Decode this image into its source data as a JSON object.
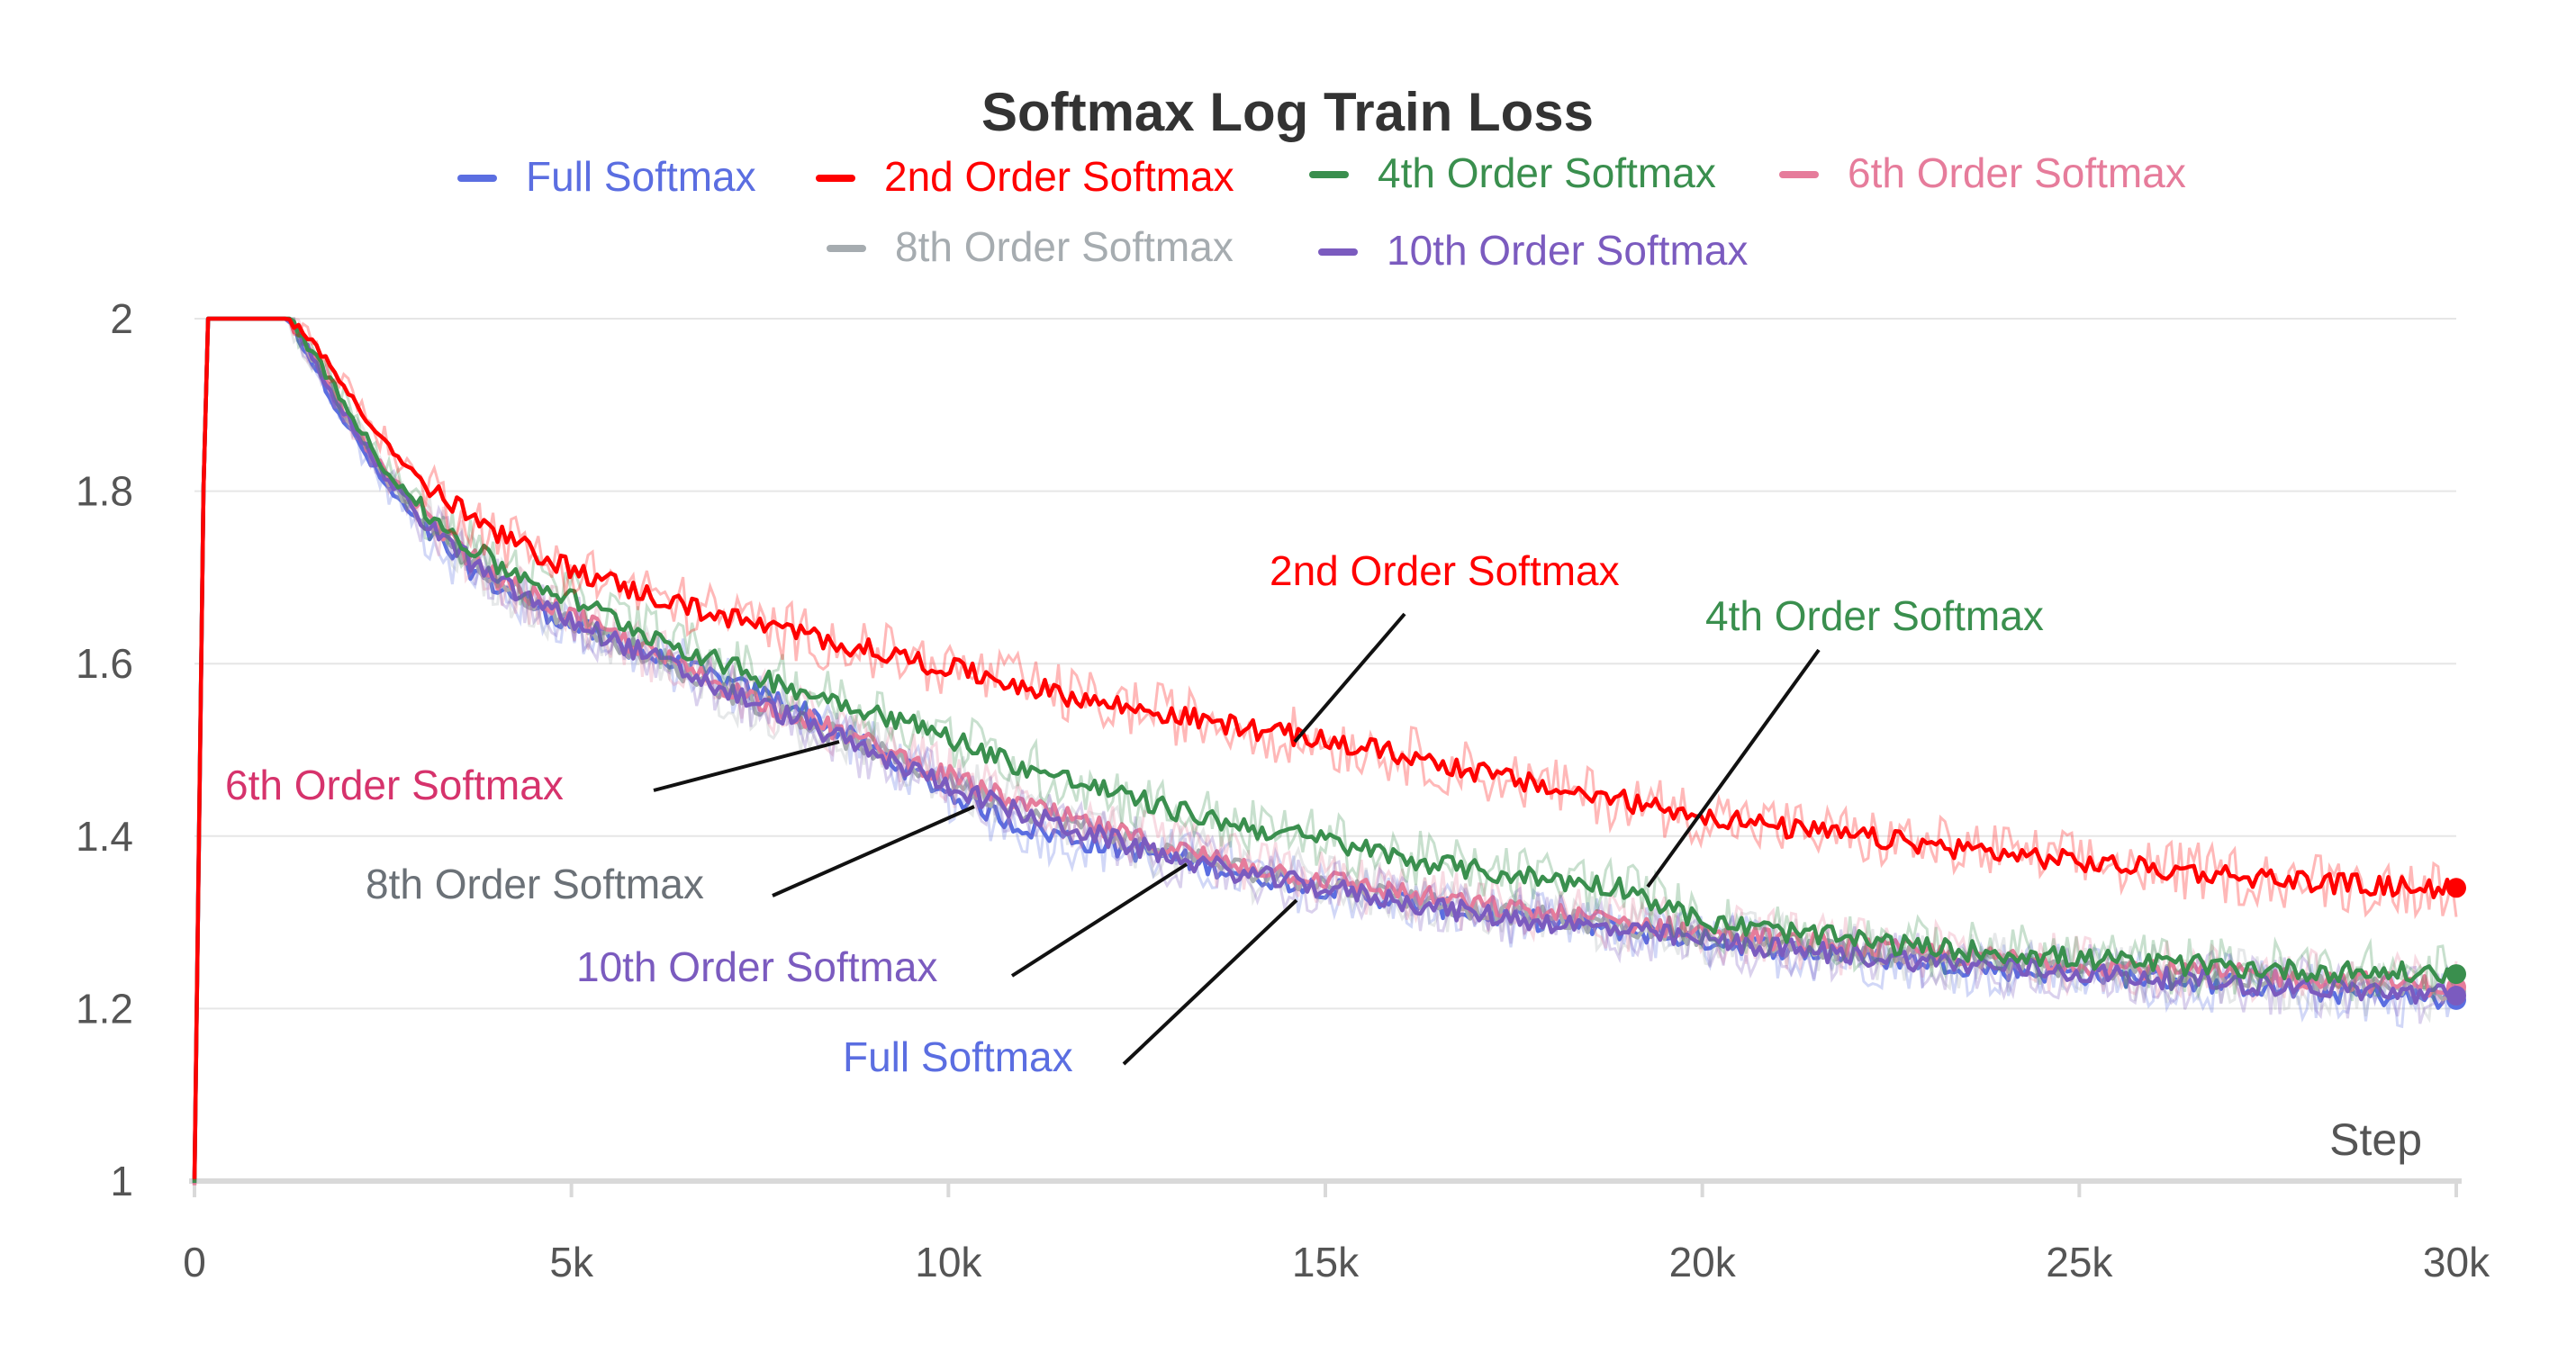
{
  "chart_data": {
    "type": "line",
    "title": "Softmax Log Train Loss",
    "xlabel": "Step",
    "ylabel": "",
    "xlim": [
      0,
      30000
    ],
    "ylim": [
      1,
      2
    ],
    "x_ticks": [
      0,
      5000,
      10000,
      15000,
      20000,
      25000,
      30000
    ],
    "x_tick_labels": [
      "0",
      "5k",
      "10k",
      "15k",
      "20k",
      "25k",
      "30k"
    ],
    "y_ticks": [
      1,
      1.2,
      1.4,
      1.6,
      1.8,
      2
    ],
    "y_tick_labels": [
      "1",
      "1.2",
      "1.4",
      "1.6",
      "1.8",
      "2"
    ],
    "grid": true,
    "legend_position": "top",
    "x": [
      0,
      150,
      300,
      1000,
      1250,
      1500,
      2000,
      2500,
      3000,
      3500,
      4000,
      5000,
      6000,
      7000,
      8000,
      9000,
      10000,
      11000,
      12000,
      13000,
      14000,
      15000,
      16000,
      17000,
      18000,
      19000,
      20000,
      21000,
      22000,
      23000,
      24000,
      25000,
      26000,
      27000,
      28000,
      29000,
      30000
    ],
    "series": [
      {
        "name": "Full Softmax",
        "color": "#5b6ee1",
        "values": [
          1.0,
          2.0,
          2.0,
          2.0,
          2.0,
          1.96,
          1.88,
          1.81,
          1.76,
          1.72,
          1.69,
          1.645,
          1.61,
          1.58,
          1.55,
          1.5,
          1.45,
          1.41,
          1.39,
          1.375,
          1.355,
          1.34,
          1.325,
          1.31,
          1.3,
          1.29,
          1.28,
          1.27,
          1.26,
          1.255,
          1.245,
          1.24,
          1.235,
          1.228,
          1.22,
          1.215,
          1.21
        ]
      },
      {
        "name": "2nd Order Softmax",
        "color": "#ff0000",
        "values": [
          1.0,
          2.0,
          2.0,
          2.0,
          2.0,
          1.98,
          1.92,
          1.86,
          1.81,
          1.78,
          1.75,
          1.71,
          1.68,
          1.655,
          1.635,
          1.615,
          1.595,
          1.575,
          1.555,
          1.54,
          1.525,
          1.51,
          1.495,
          1.475,
          1.455,
          1.44,
          1.425,
          1.41,
          1.4,
          1.39,
          1.38,
          1.37,
          1.362,
          1.355,
          1.348,
          1.342,
          1.34
        ]
      },
      {
        "name": "4th Order Softmax",
        "color": "#3a8f4e",
        "values": [
          1.0,
          2.0,
          2.0,
          2.0,
          2.0,
          1.97,
          1.9,
          1.83,
          1.78,
          1.745,
          1.715,
          1.675,
          1.635,
          1.6,
          1.57,
          1.545,
          1.515,
          1.48,
          1.455,
          1.43,
          1.41,
          1.395,
          1.375,
          1.36,
          1.35,
          1.34,
          1.3,
          1.29,
          1.28,
          1.27,
          1.265,
          1.258,
          1.252,
          1.248,
          1.244,
          1.242,
          1.24
        ]
      },
      {
        "name": "6th Order Softmax",
        "color": "#e67c9b",
        "values": [
          1.0,
          2.0,
          2.0,
          2.0,
          2.0,
          1.965,
          1.89,
          1.825,
          1.775,
          1.735,
          1.7,
          1.655,
          1.615,
          1.575,
          1.54,
          1.505,
          1.47,
          1.435,
          1.41,
          1.385,
          1.365,
          1.35,
          1.335,
          1.32,
          1.31,
          1.3,
          1.29,
          1.28,
          1.272,
          1.265,
          1.258,
          1.252,
          1.246,
          1.24,
          1.235,
          1.23,
          1.225
        ]
      },
      {
        "name": "8th Order Softmax",
        "color": "#a6acb0",
        "values": [
          1.0,
          2.0,
          2.0,
          2.0,
          2.0,
          1.965,
          1.89,
          1.82,
          1.77,
          1.73,
          1.695,
          1.65,
          1.61,
          1.57,
          1.535,
          1.5,
          1.465,
          1.43,
          1.405,
          1.38,
          1.36,
          1.345,
          1.33,
          1.315,
          1.305,
          1.295,
          1.285,
          1.275,
          1.267,
          1.26,
          1.253,
          1.247,
          1.241,
          1.235,
          1.23,
          1.225,
          1.22
        ]
      },
      {
        "name": "10th Order Softmax",
        "color": "#7b5bbf",
        "values": [
          1.0,
          2.0,
          2.0,
          2.0,
          2.0,
          1.965,
          1.89,
          1.82,
          1.77,
          1.73,
          1.695,
          1.65,
          1.61,
          1.57,
          1.535,
          1.495,
          1.46,
          1.425,
          1.4,
          1.375,
          1.355,
          1.34,
          1.325,
          1.31,
          1.3,
          1.29,
          1.28,
          1.27,
          1.262,
          1.255,
          1.248,
          1.242,
          1.236,
          1.23,
          1.225,
          1.22,
          1.215
        ]
      }
    ],
    "annotations": [
      {
        "text": "2nd Order Softmax",
        "color": "#ff0000",
        "x": 14700,
        "y": 1.51
      },
      {
        "text": "4th Order Softmax",
        "color": "#3a8f4e",
        "x": 19200,
        "y": 1.34
      },
      {
        "text": "6th Order Softmax",
        "color": "#d6336c",
        "x": 8600,
        "y": 1.52
      },
      {
        "text": "8th Order Softmax",
        "color": "#6b7177",
        "x": 10400,
        "y": 1.44
      },
      {
        "text": "10th Order Softmax",
        "color": "#7b5bbf",
        "x": 13100,
        "y": 1.37
      },
      {
        "text": "Full Softmax",
        "color": "#5b6ee1",
        "x": 14800,
        "y": 1.35
      }
    ]
  }
}
